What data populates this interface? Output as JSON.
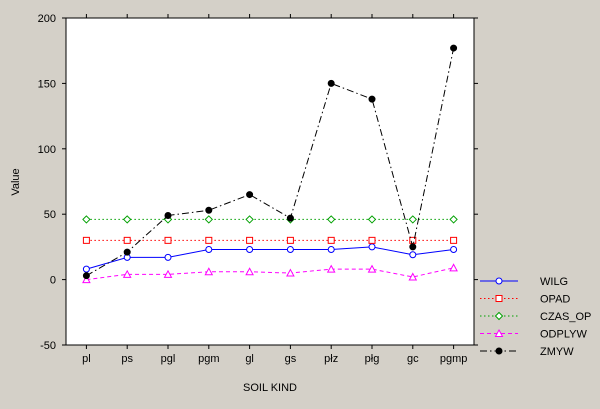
{
  "chart_data": {
    "type": "line",
    "categories": [
      "pl",
      "ps",
      "pgl",
      "pgm",
      "gl",
      "gs",
      "płz",
      "płg",
      "gc",
      "pgmp"
    ],
    "xlabel": "SOIL KIND",
    "ylabel": "Value",
    "ylim": [
      -50,
      200
    ],
    "yticks": [
      -50,
      0,
      50,
      100,
      150,
      200
    ],
    "grid": false,
    "legend_position": "right",
    "series": [
      {
        "name": "WILG",
        "color": "#0000ff",
        "dash": "solid",
        "marker": "circle-open",
        "values": [
          8,
          17,
          17,
          23,
          23,
          23,
          23,
          25,
          19,
          23
        ]
      },
      {
        "name": "OPAD",
        "color": "#ff0000",
        "dash": "dotted",
        "marker": "square-open",
        "values": [
          30,
          30,
          30,
          30,
          30,
          30,
          30,
          30,
          30,
          30
        ]
      },
      {
        "name": "CZAS_OP",
        "color": "#00a000",
        "dash": "dotted",
        "marker": "diamond-open",
        "values": [
          46,
          46,
          46,
          46,
          46,
          46,
          46,
          46,
          46,
          46
        ]
      },
      {
        "name": "ODPLYW",
        "color": "#ff00ff",
        "dash": "dashed",
        "marker": "triangle-open",
        "values": [
          0,
          4,
          4,
          6,
          6,
          5,
          8,
          8,
          2,
          9
        ]
      },
      {
        "name": "ZMYW",
        "color": "#000000",
        "dash": "dashdot",
        "marker": "circle-filled",
        "values": [
          3,
          21,
          49,
          53,
          65,
          47,
          150,
          138,
          25,
          177
        ]
      }
    ]
  }
}
